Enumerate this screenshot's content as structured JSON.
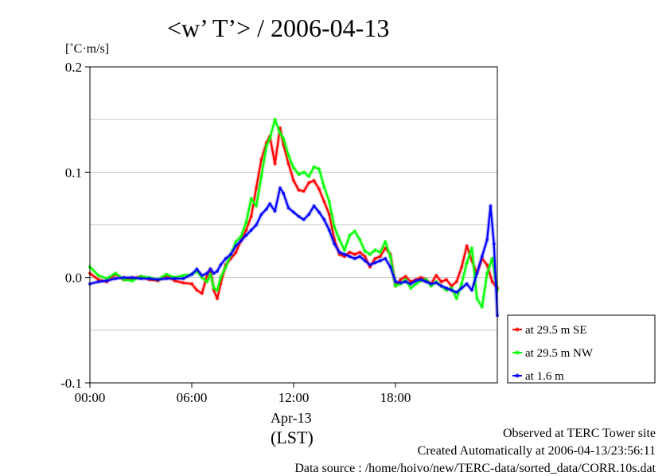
{
  "chart_data": {
    "type": "line",
    "title": "<w’ T’> / 2006-04-13",
    "ylabel": "[˚C·m/s]",
    "date_label": "Apr-13",
    "time_zone_label": "(LST)",
    "xlim": [
      0,
      24
    ],
    "ylim": [
      -0.1,
      0.2
    ],
    "x_ticks": [
      0,
      6,
      12,
      18
    ],
    "x_tick_labels": [
      "00:00",
      "06:00",
      "12:00",
      "18:00"
    ],
    "y_ticks": [
      -0.1,
      0.0,
      0.1,
      0.2
    ],
    "y_tick_labels": [
      "-0.1",
      "0.0",
      "0.1",
      "0.2"
    ],
    "grid": true,
    "legend_position": "right",
    "series": [
      {
        "name": "at 29.5 m SE",
        "color": "#ff0000",
        "points": [
          [
            0.0,
            0.004
          ],
          [
            0.5,
            -0.002
          ],
          [
            1.0,
            -0.004
          ],
          [
            1.5,
            0.003
          ],
          [
            2.0,
            -0.002
          ],
          [
            2.5,
            -0.001
          ],
          [
            3.0,
            0.001
          ],
          [
            3.5,
            -0.002
          ],
          [
            4.0,
            -0.003
          ],
          [
            4.5,
            0.002
          ],
          [
            5.0,
            -0.003
          ],
          [
            5.5,
            -0.005
          ],
          [
            6.0,
            -0.006
          ],
          [
            6.3,
            -0.012
          ],
          [
            6.6,
            -0.015
          ],
          [
            6.9,
            0.002
          ],
          [
            7.1,
            0.008
          ],
          [
            7.3,
            -0.012
          ],
          [
            7.5,
            -0.02
          ],
          [
            7.7,
            -0.006
          ],
          [
            8.0,
            0.012
          ],
          [
            8.3,
            0.018
          ],
          [
            8.6,
            0.024
          ],
          [
            8.9,
            0.035
          ],
          [
            9.2,
            0.045
          ],
          [
            9.5,
            0.058
          ],
          [
            9.8,
            0.085
          ],
          [
            10.1,
            0.112
          ],
          [
            10.4,
            0.128
          ],
          [
            10.6,
            0.134
          ],
          [
            10.9,
            0.108
          ],
          [
            11.2,
            0.142
          ],
          [
            11.4,
            0.126
          ],
          [
            11.7,
            0.108
          ],
          [
            12.0,
            0.092
          ],
          [
            12.3,
            0.083
          ],
          [
            12.6,
            0.082
          ],
          [
            12.9,
            0.09
          ],
          [
            13.2,
            0.092
          ],
          [
            13.5,
            0.084
          ],
          [
            13.8,
            0.072
          ],
          [
            14.1,
            0.06
          ],
          [
            14.4,
            0.036
          ],
          [
            14.7,
            0.022
          ],
          [
            15.0,
            0.02
          ],
          [
            15.3,
            0.024
          ],
          [
            15.6,
            0.022
          ],
          [
            15.9,
            0.024
          ],
          [
            16.2,
            0.02
          ],
          [
            16.5,
            0.01
          ],
          [
            16.8,
            0.018
          ],
          [
            17.1,
            0.02
          ],
          [
            17.4,
            0.028
          ],
          [
            17.7,
            0.022
          ],
          [
            18.0,
            -0.008
          ],
          [
            18.3,
            -0.002
          ],
          [
            18.6,
            0.001
          ],
          [
            18.9,
            -0.004
          ],
          [
            19.2,
            -0.002
          ],
          [
            19.5,
            0.0
          ],
          [
            19.8,
            -0.002
          ],
          [
            20.1,
            -0.006
          ],
          [
            20.4,
            0.002
          ],
          [
            20.7,
            -0.004
          ],
          [
            21.0,
            -0.002
          ],
          [
            21.3,
            -0.008
          ],
          [
            21.6,
            -0.004
          ],
          [
            21.9,
            0.01
          ],
          [
            22.2,
            0.03
          ],
          [
            22.5,
            0.016
          ],
          [
            22.8,
            0.004
          ],
          [
            23.1,
            0.018
          ],
          [
            23.4,
            0.012
          ],
          [
            23.7,
            -0.004
          ],
          [
            24.0,
            -0.01
          ]
        ]
      },
      {
        "name": "at 29.5 m NW",
        "color": "#00ff00",
        "points": [
          [
            0.0,
            0.01
          ],
          [
            0.5,
            0.002
          ],
          [
            1.0,
            -0.001
          ],
          [
            1.5,
            0.004
          ],
          [
            2.0,
            -0.002
          ],
          [
            2.5,
            -0.003
          ],
          [
            3.0,
            0.001
          ],
          [
            3.5,
            0.0
          ],
          [
            4.0,
            -0.002
          ],
          [
            4.5,
            0.003
          ],
          [
            5.0,
            0.0
          ],
          [
            5.5,
            0.002
          ],
          [
            6.0,
            0.003
          ],
          [
            6.3,
            0.006
          ],
          [
            6.6,
            0.0
          ],
          [
            6.9,
            -0.004
          ],
          [
            7.1,
            0.003
          ],
          [
            7.3,
            -0.01
          ],
          [
            7.5,
            -0.012
          ],
          [
            7.7,
            0.0
          ],
          [
            8.0,
            0.01
          ],
          [
            8.3,
            0.022
          ],
          [
            8.6,
            0.034
          ],
          [
            8.9,
            0.039
          ],
          [
            9.2,
            0.052
          ],
          [
            9.5,
            0.075
          ],
          [
            9.8,
            0.068
          ],
          [
            10.1,
            0.096
          ],
          [
            10.4,
            0.125
          ],
          [
            10.6,
            0.132
          ],
          [
            10.9,
            0.15
          ],
          [
            11.2,
            0.137
          ],
          [
            11.4,
            0.132
          ],
          [
            11.7,
            0.116
          ],
          [
            12.0,
            0.104
          ],
          [
            12.3,
            0.098
          ],
          [
            12.6,
            0.1
          ],
          [
            12.9,
            0.096
          ],
          [
            13.2,
            0.105
          ],
          [
            13.5,
            0.103
          ],
          [
            13.8,
            0.086
          ],
          [
            14.1,
            0.072
          ],
          [
            14.4,
            0.048
          ],
          [
            14.7,
            0.036
          ],
          [
            15.0,
            0.026
          ],
          [
            15.3,
            0.04
          ],
          [
            15.6,
            0.044
          ],
          [
            15.9,
            0.036
          ],
          [
            16.2,
            0.025
          ],
          [
            16.5,
            0.022
          ],
          [
            16.8,
            0.026
          ],
          [
            17.1,
            0.024
          ],
          [
            17.4,
            0.034
          ],
          [
            17.7,
            0.02
          ],
          [
            18.0,
            -0.008
          ],
          [
            18.3,
            -0.006
          ],
          [
            18.6,
            -0.002
          ],
          [
            18.9,
            -0.01
          ],
          [
            19.2,
            -0.006
          ],
          [
            19.5,
            -0.003
          ],
          [
            19.8,
            -0.002
          ],
          [
            20.1,
            -0.008
          ],
          [
            20.4,
            -0.004
          ],
          [
            20.7,
            -0.008
          ],
          [
            21.0,
            -0.012
          ],
          [
            21.3,
            -0.01
          ],
          [
            21.6,
            -0.02
          ],
          [
            21.9,
            -0.006
          ],
          [
            22.2,
            0.014
          ],
          [
            22.5,
            0.028
          ],
          [
            22.8,
            -0.02
          ],
          [
            23.1,
            -0.028
          ],
          [
            23.4,
            0.004
          ],
          [
            23.7,
            0.018
          ],
          [
            24.0,
            -0.012
          ]
        ]
      },
      {
        "name": "at 1.6 m",
        "color": "#0000ff",
        "points": [
          [
            0.0,
            -0.006
          ],
          [
            0.5,
            -0.004
          ],
          [
            1.0,
            -0.003
          ],
          [
            1.5,
            -0.001
          ],
          [
            2.0,
            0.0
          ],
          [
            2.5,
            0.0
          ],
          [
            3.0,
            -0.001
          ],
          [
            3.5,
            -0.001
          ],
          [
            4.0,
            -0.002
          ],
          [
            4.5,
            -0.001
          ],
          [
            5.0,
            -0.001
          ],
          [
            5.5,
            -0.001
          ],
          [
            6.0,
            0.003
          ],
          [
            6.3,
            0.008
          ],
          [
            6.6,
            0.002
          ],
          [
            6.9,
            0.004
          ],
          [
            7.1,
            0.008
          ],
          [
            7.3,
            0.004
          ],
          [
            7.5,
            0.006
          ],
          [
            7.7,
            0.012
          ],
          [
            8.0,
            0.018
          ],
          [
            8.3,
            0.022
          ],
          [
            8.6,
            0.03
          ],
          [
            8.9,
            0.035
          ],
          [
            9.2,
            0.04
          ],
          [
            9.5,
            0.045
          ],
          [
            9.8,
            0.05
          ],
          [
            10.1,
            0.06
          ],
          [
            10.4,
            0.065
          ],
          [
            10.6,
            0.07
          ],
          [
            10.9,
            0.063
          ],
          [
            11.2,
            0.085
          ],
          [
            11.4,
            0.08
          ],
          [
            11.7,
            0.066
          ],
          [
            12.0,
            0.062
          ],
          [
            12.3,
            0.058
          ],
          [
            12.6,
            0.055
          ],
          [
            12.9,
            0.06
          ],
          [
            13.2,
            0.068
          ],
          [
            13.5,
            0.062
          ],
          [
            13.8,
            0.055
          ],
          [
            14.1,
            0.045
          ],
          [
            14.4,
            0.032
          ],
          [
            14.7,
            0.024
          ],
          [
            15.0,
            0.022
          ],
          [
            15.3,
            0.02
          ],
          [
            15.6,
            0.018
          ],
          [
            15.9,
            0.02
          ],
          [
            16.2,
            0.016
          ],
          [
            16.5,
            0.012
          ],
          [
            16.8,
            0.014
          ],
          [
            17.1,
            0.016
          ],
          [
            17.4,
            0.018
          ],
          [
            17.7,
            0.01
          ],
          [
            18.0,
            -0.004
          ],
          [
            18.3,
            -0.005
          ],
          [
            18.6,
            -0.004
          ],
          [
            18.9,
            -0.006
          ],
          [
            19.2,
            -0.003
          ],
          [
            19.5,
            -0.002
          ],
          [
            19.8,
            -0.004
          ],
          [
            20.1,
            -0.006
          ],
          [
            20.4,
            -0.005
          ],
          [
            20.7,
            -0.008
          ],
          [
            21.0,
            -0.01
          ],
          [
            21.3,
            -0.012
          ],
          [
            21.6,
            -0.014
          ],
          [
            21.9,
            -0.01
          ],
          [
            22.2,
            -0.006
          ],
          [
            22.5,
            -0.012
          ],
          [
            22.8,
            0.004
          ],
          [
            23.1,
            0.02
          ],
          [
            23.4,
            0.036
          ],
          [
            23.6,
            0.068
          ],
          [
            23.8,
            0.032
          ],
          [
            24.0,
            -0.036
          ]
        ]
      }
    ]
  },
  "footer": {
    "line1": "Observed at TERC Tower site",
    "line2": "Created Automatically at 2006-04-13/23:56:11",
    "line3": "Data source : /home/hoivo/new/TERC-data/sorted_data/CORR.10s.dat"
  }
}
